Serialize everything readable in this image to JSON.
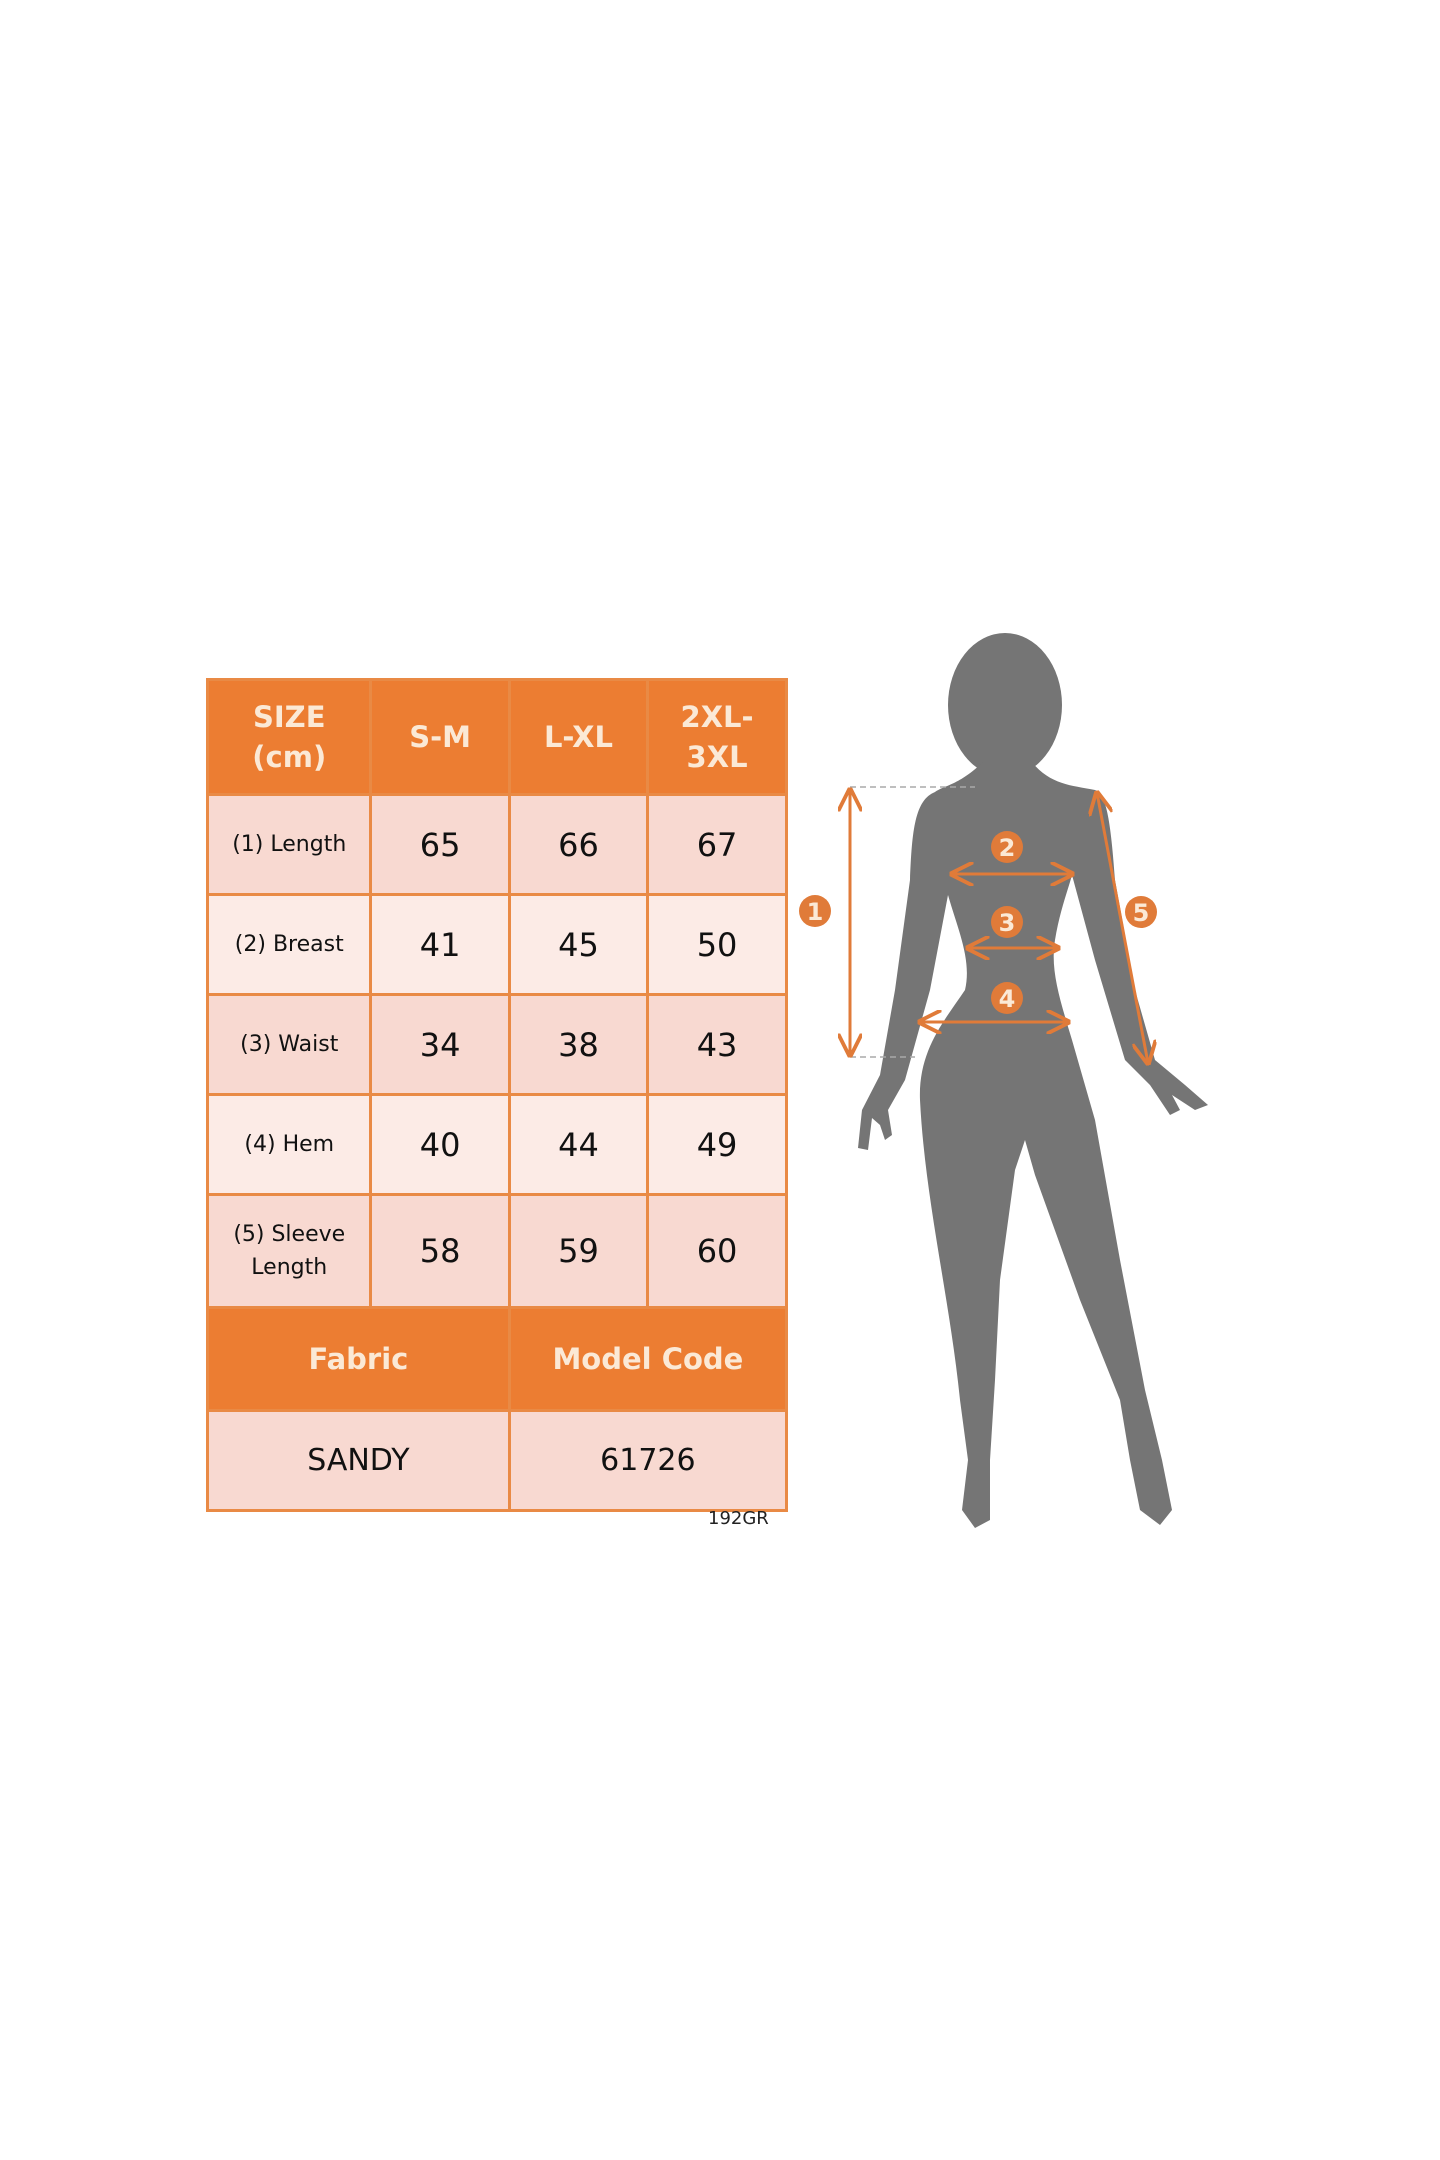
{
  "table": {
    "headers": [
      "SIZE\n(cm)",
      "S-M",
      "L-XL",
      "2XL-\n3XL"
    ],
    "rows": [
      {
        "label": "(1) Length",
        "values": [
          "65",
          "66",
          "67"
        ]
      },
      {
        "label": "(2) Breast",
        "values": [
          "41",
          "45",
          "50"
        ]
      },
      {
        "label": "(3) Waist",
        "values": [
          "34",
          "38",
          "43"
        ]
      },
      {
        "label": "(4) Hem",
        "values": [
          "40",
          "44",
          "49"
        ]
      },
      {
        "label": "(5) Sleeve\nLength",
        "values": [
          "58",
          "59",
          "60"
        ]
      }
    ],
    "info_headers": [
      "Fabric",
      "Model Code"
    ],
    "info_values": [
      "SANDY",
      "61726"
    ]
  },
  "footer_code": "192GR",
  "figure": {
    "markers": [
      "1",
      "2",
      "3",
      "4",
      "5"
    ],
    "silhouette_color": "#757575",
    "accent_color": "#e07b39"
  },
  "colors": {
    "header": "#ec7d32",
    "cell": "#f8d9d1",
    "border": "#e98a45"
  }
}
